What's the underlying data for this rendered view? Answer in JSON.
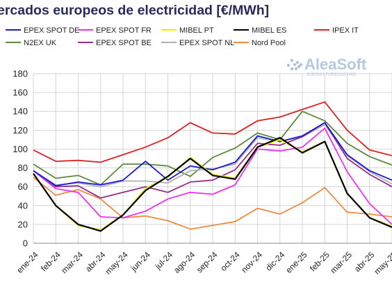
{
  "title": "ercados europeos de electricidad [€/MWh]",
  "watermark": {
    "brand": "AleaSoft",
    "tagline": "ENERGY FORECASTING"
  },
  "chart_data": {
    "type": "line",
    "categories": [
      "ene-24",
      "feb-24",
      "mar-24",
      "abr-24",
      "may-24",
      "jun-24",
      "jul-24",
      "ago-24",
      "sep-24",
      "oct-24",
      "nov-24",
      "dic-24",
      "ene-25",
      "feb-25",
      "mar-25",
      "abr-25",
      "may-25"
    ],
    "ylim": [
      0,
      180
    ],
    "yticks": [
      0,
      20,
      40,
      60,
      80,
      100,
      120,
      140,
      160,
      180
    ],
    "grid": true,
    "legend_position": "top",
    "series": [
      {
        "name": "EPEX SPOT DE",
        "color": "#1a1ad4",
        "values": [
          77,
          61,
          65,
          62,
          67,
          87,
          67,
          82,
          78,
          86,
          114,
          108,
          114,
          128,
          94,
          77,
          67
        ]
      },
      {
        "name": "EPEX SPOT FR",
        "color": "#ee30ee",
        "values": [
          77,
          58,
          54,
          28,
          27,
          34,
          47,
          54,
          52,
          62,
          100,
          98,
          102,
          122,
          76,
          42,
          20
        ]
      },
      {
        "name": "MIBEL PT",
        "color": "#f0f000",
        "values": [
          74,
          40,
          19,
          14,
          30,
          58,
          70,
          91,
          73,
          69,
          102,
          110,
          97,
          108,
          53,
          27,
          18
        ]
      },
      {
        "name": "MIBEL ES",
        "color": "#000000",
        "values": [
          74,
          40,
          20,
          13,
          30,
          56,
          71,
          90,
          72,
          68,
          102,
          112,
          96,
          108,
          53,
          27,
          17
        ]
      },
      {
        "name": "IPEX IT",
        "color": "#e02020",
        "values": [
          99,
          87,
          88,
          86,
          94,
          102,
          112,
          128,
          117,
          116,
          130,
          134,
          142,
          150,
          120,
          99,
          93
        ]
      },
      {
        "name": "N2EX UK",
        "color": "#5a8a3c",
        "values": [
          84,
          69,
          72,
          62,
          84,
          84,
          82,
          71,
          91,
          101,
          117,
          110,
          140,
          130,
          106,
          92,
          83
        ]
      },
      {
        "name": "EPEX SPOT BE",
        "color": "#9a2a8a",
        "values": [
          77,
          60,
          61,
          48,
          54,
          60,
          54,
          65,
          67,
          78,
          106,
          104,
          113,
          128,
          90,
          73,
          60
        ]
      },
      {
        "name": "EPEX SPOT NL",
        "color": "#b0b0b0",
        "values": [
          77,
          62,
          64,
          60,
          66,
          66,
          64,
          77,
          79,
          84,
          112,
          108,
          113,
          126,
          93,
          76,
          63
        ]
      },
      {
        "name": "Nord Pool",
        "color": "#ee8a40",
        "values": [
          70,
          51,
          57,
          47,
          27,
          29,
          24,
          15,
          19,
          23,
          37,
          31,
          43,
          59,
          33,
          31,
          28
        ]
      }
    ]
  }
}
